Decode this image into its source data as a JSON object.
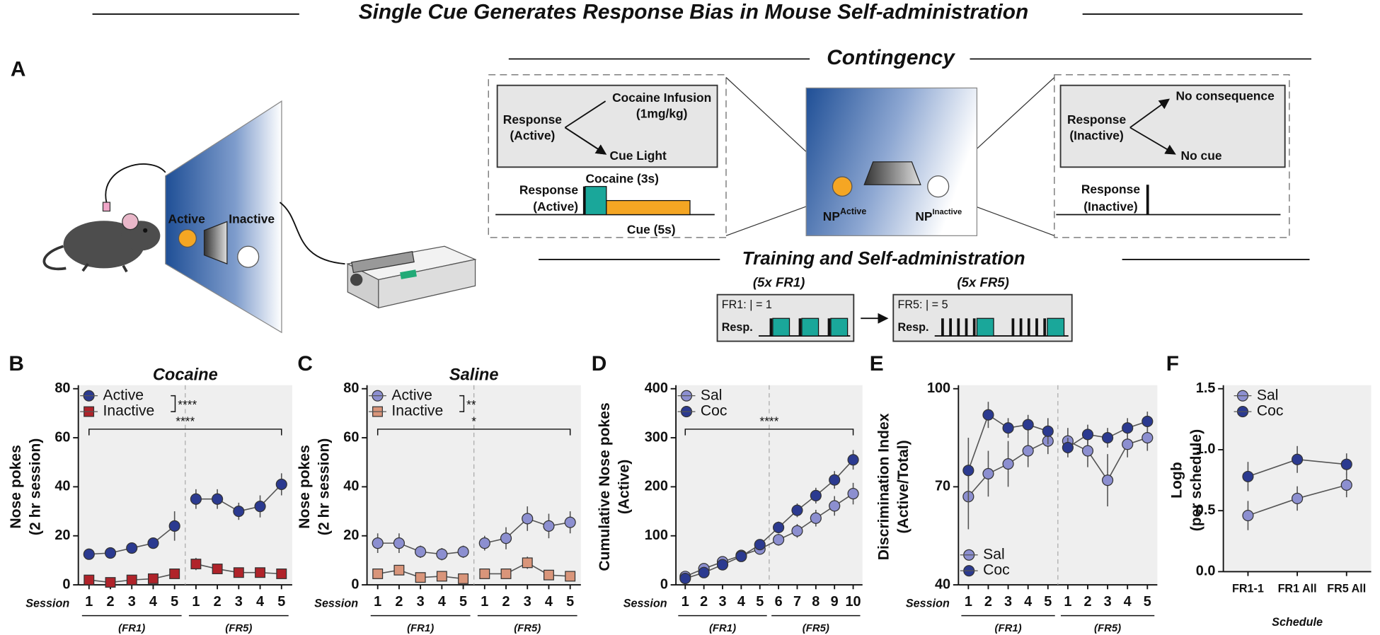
{
  "title": "Single Cue Generates Response Bias in Mouse Self-administration",
  "panel_a": {
    "label": "A",
    "chamber_active": "Active",
    "chamber_inactive": "Inactive",
    "contingency": {
      "title": "Contingency",
      "active_box": {
        "response": [
          "Response",
          "(Active)"
        ],
        "infusion": [
          "Cocaine Infusion",
          "(1mg/kg)"
        ],
        "cue": "Cue Light"
      },
      "active_timeline": {
        "response": [
          "Response",
          "(Active)"
        ],
        "cocaine": "Cocaine (3s)",
        "cue": "Cue (5s)"
      },
      "np_active": [
        "NP",
        "Active"
      ],
      "np_inactive": [
        "NP",
        "Inactive"
      ],
      "inactive_box": {
        "response": [
          "Response",
          "(Inactive)"
        ],
        "consequence": "No consequence",
        "cue": "No cue"
      },
      "inactive_timeline": {
        "response": [
          "Response",
          "(Inactive)"
        ]
      }
    },
    "training": {
      "title": "Training and Self-administration",
      "fr1": {
        "heading": "(5x FR1)",
        "rule": "FR1: | = 1",
        "resp": "Resp."
      },
      "fr5": {
        "heading": "(5x FR5)",
        "rule": "FR5: | = 5",
        "resp": "Resp."
      }
    }
  },
  "chart_data": [
    {
      "type": "line",
      "panel": "B",
      "title": "Cocaine",
      "ylabel": [
        "Nose pokes",
        "(2 hr session)"
      ],
      "x_label": "Session",
      "categories": [
        "1",
        "2",
        "3",
        "4",
        "5",
        "1",
        "2",
        "3",
        "4",
        "5"
      ],
      "groups": [
        "(FR1)",
        "(FR5)"
      ],
      "divider": true,
      "connect_groups": false,
      "ylim": [
        0,
        80
      ],
      "yticks": [
        0,
        20,
        40,
        60,
        80
      ],
      "legend": "upper left",
      "series": [
        {
          "name": "Active",
          "color": "#2b3a90",
          "marker": "circle",
          "values": [
            12.5,
            13,
            15,
            17,
            24,
            35,
            35,
            30,
            32,
            41
          ],
          "errors": [
            1,
            1,
            1,
            1.5,
            6,
            4,
            4,
            3.5,
            4.5,
            4.5
          ]
        },
        {
          "name": "Inactive",
          "color": "#b0232a",
          "marker": "square",
          "values": [
            2,
            1,
            2,
            2.5,
            4.5,
            8.5,
            6.5,
            5,
            5,
            4.5
          ],
          "errors": [
            1,
            1,
            1,
            1,
            1.5,
            2.5,
            1.5,
            1,
            1,
            1
          ]
        }
      ],
      "annotations": [
        "****",
        "****"
      ]
    },
    {
      "type": "line",
      "panel": "C",
      "title": "Saline",
      "ylabel": [
        "Nose pokes",
        "(2 hr session)"
      ],
      "x_label": "Session",
      "categories": [
        "1",
        "2",
        "3",
        "4",
        "5",
        "1",
        "2",
        "3",
        "4",
        "5"
      ],
      "groups": [
        "(FR1)",
        "(FR5)"
      ],
      "divider": true,
      "connect_groups": false,
      "ylim": [
        0,
        80
      ],
      "yticks": [
        0,
        20,
        40,
        60,
        80
      ],
      "legend": "upper left",
      "series": [
        {
          "name": "Active",
          "color": "#8c8fd0",
          "marker": "circle",
          "values": [
            17,
            17,
            13.5,
            12.5,
            13.5,
            17,
            19,
            27,
            24,
            25.5
          ],
          "errors": [
            4,
            4,
            2.5,
            2.5,
            2.5,
            3,
            4.5,
            5,
            5,
            4.5
          ]
        },
        {
          "name": "Inactive",
          "color": "#d9957a",
          "marker": "square",
          "values": [
            4.5,
            6,
            3,
            3.5,
            2.5,
            4.5,
            4.5,
            9,
            4,
            3.5
          ],
          "errors": [
            1.5,
            2,
            1,
            1.5,
            1,
            2,
            2,
            2.5,
            1.5,
            1.5
          ]
        }
      ],
      "annotations": [
        "**",
        "*"
      ]
    },
    {
      "type": "line",
      "panel": "D",
      "ylabel": [
        "Cumulative Nose pokes",
        "(Active)"
      ],
      "x_label": "Session",
      "categories": [
        "1",
        "2",
        "3",
        "4",
        "5",
        "6",
        "7",
        "8",
        "9",
        "10"
      ],
      "groups": [
        "(FR1)",
        "(FR5)"
      ],
      "divider": true,
      "connect_groups": true,
      "ylim": [
        0,
        400
      ],
      "yticks": [
        0,
        100,
        200,
        300,
        400
      ],
      "legend": "upper left",
      "series": [
        {
          "name": "Sal",
          "color": "#8c8fd0",
          "marker": "circle",
          "values": [
            17,
            33,
            47,
            60,
            73,
            92,
            110,
            136,
            161,
            186
          ],
          "errors": [
            4,
            5,
            6,
            7,
            8,
            12,
            14,
            17,
            20,
            22
          ]
        },
        {
          "name": "Coc",
          "color": "#2b3a90",
          "marker": "circle",
          "values": [
            13,
            25,
            41,
            58,
            82,
            117,
            152,
            182,
            214,
            255
          ],
          "errors": [
            3,
            4,
            6,
            7,
            9,
            12,
            14,
            16,
            18,
            20
          ]
        }
      ],
      "annotations": [
        "****"
      ]
    },
    {
      "type": "line",
      "panel": "E",
      "ylabel": [
        "Discrimination Index",
        "(Active/Total)"
      ],
      "x_label": "Session",
      "categories": [
        "1",
        "2",
        "3",
        "4",
        "5",
        "1",
        "2",
        "3",
        "4",
        "5"
      ],
      "groups": [
        "(FR1)",
        "(FR5)"
      ],
      "divider": true,
      "connect_groups": false,
      "ylim": [
        40,
        100
      ],
      "yticks": [
        40,
        70,
        100
      ],
      "legend": "lower left",
      "series": [
        {
          "name": "Sal",
          "color": "#8c8fd0",
          "marker": "circle",
          "values": [
            67,
            74,
            77,
            81,
            84,
            84,
            81,
            72,
            83,
            85
          ],
          "errors": [
            10,
            7,
            7,
            5,
            4,
            4,
            5,
            8,
            4,
            4
          ]
        },
        {
          "name": "Coc",
          "color": "#2b3a90",
          "marker": "circle",
          "values": [
            75,
            92,
            88,
            89,
            87,
            82,
            86,
            85,
            88,
            90
          ],
          "errors": [
            10,
            4,
            3,
            3,
            4,
            3,
            3,
            3,
            3,
            3
          ]
        }
      ]
    },
    {
      "type": "line",
      "panel": "F",
      "ylabel": [
        "Logb",
        "(per schedule)"
      ],
      "x_label": "Schedule",
      "categories": [
        "FR1-1",
        "FR1 All",
        "FR5 All"
      ],
      "ylim": [
        0,
        1.5
      ],
      "yticks": [
        {
          "value": 0,
          "label": "0.0"
        },
        {
          "value": 0.5,
          "label": "0.5"
        },
        {
          "value": 1,
          "label": "1.0"
        },
        {
          "value": 1.5,
          "label": "1.5"
        }
      ],
      "legend": "upper left",
      "series": [
        {
          "name": "Sal",
          "color": "#8c8fd0",
          "marker": "circle",
          "values": [
            0.46,
            0.6,
            0.71
          ],
          "errors": [
            0.12,
            0.1,
            0.1
          ]
        },
        {
          "name": "Coc",
          "color": "#2b3a90",
          "marker": "circle",
          "values": [
            0.78,
            0.92,
            0.88
          ],
          "errors": [
            0.12,
            0.11,
            0.09
          ]
        }
      ]
    }
  ]
}
